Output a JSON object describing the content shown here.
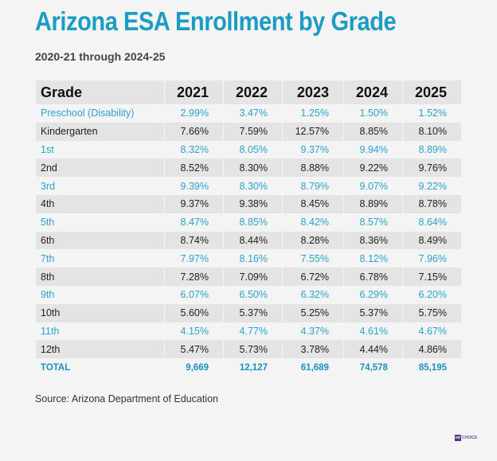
{
  "title": "Arizona ESA Enrollment by Grade",
  "subtitle": "2020-21 through 2024-25",
  "table": {
    "headers": [
      "Grade",
      "2021",
      "2022",
      "2023",
      "2024",
      "2025"
    ],
    "rows": [
      [
        "Preschool (Disability)",
        "2.99%",
        "3.47%",
        "1.25%",
        "1.50%",
        "1.52%"
      ],
      [
        "Kindergarten",
        "7.66%",
        "7.59%",
        "12.57%",
        "8.85%",
        "8.10%"
      ],
      [
        "1st",
        "8.32%",
        "8.05%",
        "9.37%",
        "9.94%",
        "8.89%"
      ],
      [
        "2nd",
        "8.52%",
        "8.30%",
        "8.88%",
        "9.22%",
        "9.76%"
      ],
      [
        "3rd",
        "9.39%",
        "8.30%",
        "8.79%",
        "9.07%",
        "9.22%"
      ],
      [
        "4th",
        "9.37%",
        "9.38%",
        "8.45%",
        "8.89%",
        "8.78%"
      ],
      [
        "5th",
        "8.47%",
        "8.85%",
        "8.42%",
        "8.57%",
        "8.64%"
      ],
      [
        "6th",
        "8.74%",
        "8.44%",
        "8.28%",
        "8.36%",
        "8.49%"
      ],
      [
        "7th",
        "7.97%",
        "8.16%",
        "7.55%",
        "8.12%",
        "7.96%"
      ],
      [
        "8th",
        "7.28%",
        "7.09%",
        "6.72%",
        "6.78%",
        "7.15%"
      ],
      [
        "9th",
        "6.07%",
        "6.50%",
        "6.32%",
        "6.29%",
        "6.20%"
      ],
      [
        "10th",
        "5.60%",
        "5.37%",
        "5.25%",
        "5.37%",
        "5.75%"
      ],
      [
        "11th",
        "4.15%",
        "4.77%",
        "4.37%",
        "4.61%",
        "4.67%"
      ],
      [
        "12th",
        "5.47%",
        "5.73%",
        "3.78%",
        "4.44%",
        "4.86%"
      ]
    ],
    "total": [
      "TOTAL",
      "9,669",
      "12,127",
      "61,689",
      "74,578",
      "85,195"
    ]
  },
  "source": "Source: Arizona Department of Education",
  "logo": {
    "mark": "ed",
    "text": "CHOICE"
  },
  "colors": {
    "accent": "#1b9cc4",
    "row_alt": "#e4e4e4",
    "background": "#f4f4f4"
  }
}
